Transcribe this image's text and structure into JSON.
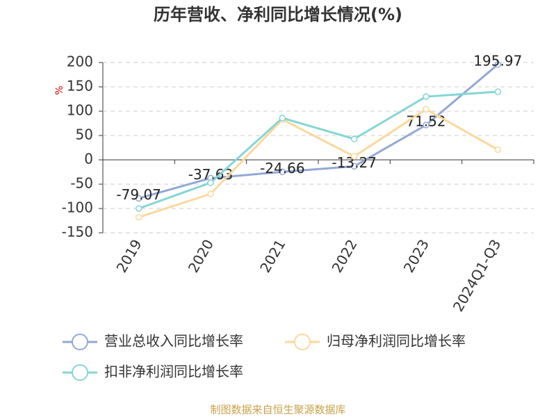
{
  "chart_data": {
    "type": "line",
    "title": "历年营收、净利同比增长情况(%)",
    "y_label": "%",
    "source": "制图数据来自恒生聚源数据库",
    "categories": [
      "2019",
      "2020",
      "2021",
      "2022",
      "2023",
      "2024Q1-Q3"
    ],
    "series": [
      {
        "name": "营业总收入同比增长率",
        "color": "#92a8d6",
        "values": [
          -79.07,
          -37.63,
          -24.66,
          -13.27,
          71.52,
          195.97
        ]
      },
      {
        "name": "归母净利润同比增长率",
        "color": "#fad89c",
        "values": [
          -118,
          -70,
          83,
          7,
          104,
          21
        ]
      },
      {
        "name": "扣非净利润同比增长率",
        "color": "#85d5d5",
        "values": [
          -100,
          -47,
          86,
          43,
          130,
          140
        ]
      }
    ],
    "ylim": [
      -150,
      200
    ],
    "yticks": [
      -150,
      -100,
      -50,
      0,
      50,
      100,
      150,
      200
    ],
    "grid": true
  }
}
